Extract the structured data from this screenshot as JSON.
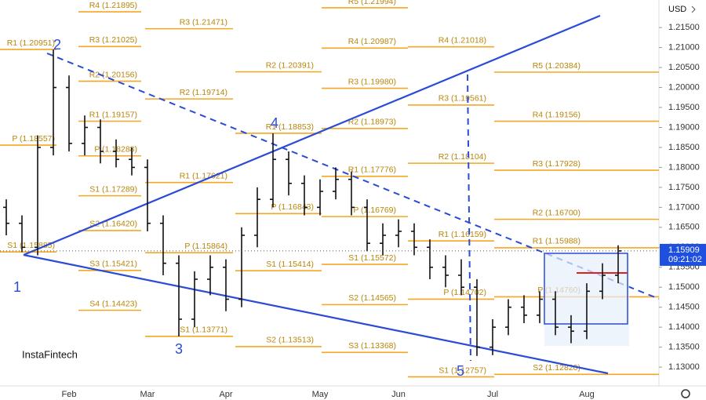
{
  "chart_data": {
    "type": "ohlc",
    "currency": "USD",
    "brand": "InstaFintech",
    "categories": [
      "Feb",
      "Mar",
      "Apr",
      "May",
      "Jun",
      "Jul",
      "Aug"
    ],
    "category_positions": [
      4,
      9,
      14,
      20,
      25,
      31,
      37
    ],
    "open": [
      1.17,
      1.166,
      1.16,
      1.185,
      1.2,
      1.186,
      1.19,
      1.184,
      1.182,
      1.18,
      1.166,
      1.156,
      1.142,
      1.152,
      1.155,
      1.147,
      1.163,
      1.172,
      1.182,
      1.176,
      1.17,
      1.174,
      1.177,
      1.17,
      1.161,
      1.163,
      1.164,
      1.16,
      1.155,
      1.153,
      1.15,
      1.135,
      1.14,
      1.145,
      1.143,
      1.147,
      1.14,
      1.139,
      1.149,
      1.153
    ],
    "high": [
      1.172,
      1.168,
      1.188,
      1.2095,
      1.203,
      1.193,
      1.192,
      1.187,
      1.185,
      1.182,
      1.168,
      1.158,
      1.154,
      1.158,
      1.157,
      1.165,
      1.175,
      1.1885,
      1.184,
      1.178,
      1.177,
      1.18,
      1.179,
      1.172,
      1.166,
      1.167,
      1.166,
      1.162,
      1.158,
      1.157,
      1.152,
      1.142,
      1.147,
      1.148,
      1.149,
      1.149,
      1.143,
      1.151,
      1.156,
      1.1605
    ],
    "low": [
      1.163,
      1.1588,
      1.158,
      1.183,
      1.184,
      1.183,
      1.181,
      1.18,
      1.178,
      1.164,
      1.153,
      1.1377,
      1.14,
      1.148,
      1.144,
      1.145,
      1.16,
      1.17,
      1.173,
      1.168,
      1.168,
      1.172,
      1.168,
      1.159,
      1.158,
      1.16,
      1.158,
      1.152,
      1.15,
      1.148,
      1.1328,
      1.133,
      1.138,
      1.141,
      1.141,
      1.138,
      1.136,
      1.137,
      1.147,
      1.151
    ],
    "close": [
      1.166,
      1.16,
      1.185,
      1.2,
      1.186,
      1.19,
      1.184,
      1.182,
      1.18,
      1.166,
      1.156,
      1.142,
      1.152,
      1.155,
      1.147,
      1.163,
      1.172,
      1.182,
      1.176,
      1.17,
      1.174,
      1.177,
      1.17,
      1.161,
      1.163,
      1.164,
      1.16,
      1.155,
      1.153,
      1.15,
      1.135,
      1.14,
      1.145,
      1.143,
      1.147,
      1.14,
      1.139,
      1.149,
      1.153,
      1.15909
    ],
    "color": "#111111",
    "ylim": [
      1.1257,
      1.2219
    ],
    "yticks": [
      {
        "value": 1.215,
        "label": "1.21500"
      },
      {
        "value": 1.21,
        "label": "1.21000"
      },
      {
        "value": 1.205,
        "label": "1.20500"
      },
      {
        "value": 1.2,
        "label": "1.20000"
      },
      {
        "value": 1.195,
        "label": "1.19500"
      },
      {
        "value": 1.19,
        "label": "1.19000"
      },
      {
        "value": 1.185,
        "label": "1.18500"
      },
      {
        "value": 1.18,
        "label": "1.18000"
      },
      {
        "value": 1.175,
        "label": "1.17500"
      },
      {
        "value": 1.17,
        "label": "1.17000"
      },
      {
        "value": 1.165,
        "label": "1.16500"
      },
      {
        "value": 1.16,
        "label": "1.16000"
      },
      {
        "value": 1.155,
        "label": "1.15500"
      },
      {
        "value": 1.15,
        "label": "1.15000"
      },
      {
        "value": 1.145,
        "label": "1.14500"
      },
      {
        "value": 1.14,
        "label": "1.14000"
      },
      {
        "value": 1.135,
        "label": "1.13500"
      },
      {
        "value": 1.13,
        "label": "1.13000"
      }
    ],
    "last_price": 1.15909,
    "last_time": "09:21:02",
    "level_color": "#f5a623",
    "pivot_periods": [
      [
        {
          "label": "R1 (1.20951)",
          "value": 1.20951
        },
        {
          "label": "P (1.18557)",
          "value": 1.18557
        },
        {
          "label": "S1 (1.15885)",
          "value": 1.15885
        }
      ],
      [
        {
          "label": "R4 (1.21895)",
          "value": 1.21895
        },
        {
          "label": "R3 (1.21025)",
          "value": 1.21025
        },
        {
          "label": "R2 (1.20156)",
          "value": 1.20156
        },
        {
          "label": "R1 (1.19157)",
          "value": 1.19157
        },
        {
          "label": "P (1.18288)",
          "value": 1.18288
        },
        {
          "label": "S1 (1.17289)",
          "value": 1.17289
        },
        {
          "label": "S2 (1.16420)",
          "value": 1.1642
        },
        {
          "label": "S3 (1.15421)",
          "value": 1.15421
        },
        {
          "label": "S4 (1.14423)",
          "value": 1.14423
        }
      ],
      [
        {
          "label": "R3 (1.21471)",
          "value": 1.21471
        },
        {
          "label": "R2 (1.19714)",
          "value": 1.19714
        },
        {
          "label": "R1 (1.17621)",
          "value": 1.17621
        },
        {
          "label": "P (1.15864)",
          "value": 1.15864
        },
        {
          "label": "S1 (1.13771)",
          "value": 1.13771
        }
      ],
      [
        {
          "label": "R2 (1.20391)",
          "value": 1.20391
        },
        {
          "label": "R1 (1.18853)",
          "value": 1.18853
        },
        {
          "label": "P (1.16843)",
          "value": 1.16843
        },
        {
          "label": "S1 (1.15414)",
          "value": 1.15414
        },
        {
          "label": "S2 (1.13513)",
          "value": 1.13513
        }
      ],
      [
        {
          "label": "R5 (1.21994)",
          "value": 1.21994
        },
        {
          "label": "R4 (1.20987)",
          "value": 1.20987
        },
        {
          "label": "R3 (1.19980)",
          "value": 1.1998
        },
        {
          "label": "R2 (1.18973)",
          "value": 1.18973
        },
        {
          "label": "R1 (1.17776)",
          "value": 1.17776
        },
        {
          "label": "P (1.16769)",
          "value": 1.16769
        },
        {
          "label": "S1 (1.15572)",
          "value": 1.15572
        },
        {
          "label": "S2 (1.14565)",
          "value": 1.14565
        },
        {
          "label": "S3 (1.13368)",
          "value": 1.13368
        }
      ],
      [
        {
          "label": "R4 (1.21018)",
          "value": 1.21018
        },
        {
          "label": "R3 (1.19561)",
          "value": 1.19561
        },
        {
          "label": "R2 (1.18104)",
          "value": 1.18104
        },
        {
          "label": "R1 (1.16159)",
          "value": 1.16159
        },
        {
          "label": "P (1.14702)",
          "value": 1.14702
        },
        {
          "label": "S1 (1.12757)",
          "value": 1.12757
        }
      ],
      [
        {
          "label": "R5 (1.20384)",
          "value": 1.20384
        },
        {
          "label": "R4 (1.19156)",
          "value": 1.19156
        },
        {
          "label": "R3 (1.17928)",
          "value": 1.17928
        },
        {
          "label": "R2 (1.16700)",
          "value": 1.167
        },
        {
          "label": "R1 (1.15988)",
          "value": 1.15988
        },
        {
          "label": "P (1.14760)",
          "value": 1.1476
        },
        {
          "label": "S2 (1.12820)",
          "value": 1.1282
        }
      ]
    ],
    "waves": [
      "1",
      "2",
      "3",
      "4",
      "5"
    ]
  }
}
